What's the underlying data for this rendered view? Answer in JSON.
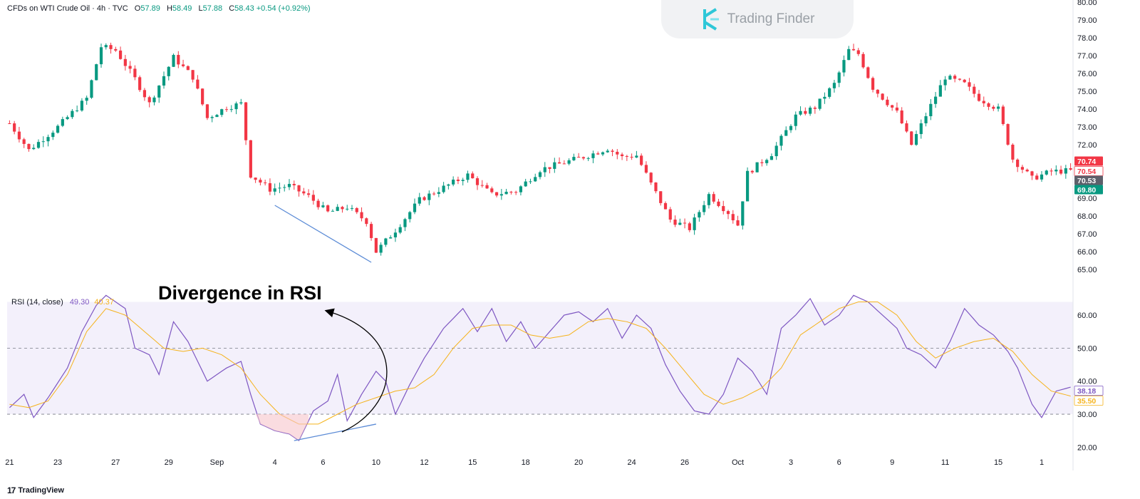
{
  "header": {
    "symbol": "CFDs on WTI Crude Oil · 4h · TVC",
    "o_label": "O",
    "o_value": "57.89",
    "h_label": "H",
    "h_value": "58.49",
    "l_label": "L",
    "l_value": "57.88",
    "c_label": "C",
    "c_value": "58.43",
    "change": "+0.54 (+0.92%)"
  },
  "brand": {
    "name": "Trading Finder"
  },
  "footer": {
    "logo_mark": "17",
    "name": "TradingView"
  },
  "annotation": {
    "text": "Divergence in RSI"
  },
  "colors": {
    "up": "#089981",
    "down": "#f23645",
    "rsi_line": "#7e57c2",
    "rsi_ma": "#f5b31c",
    "rsi_band": "#f3f0fb",
    "divergence": "#5b8bd6"
  },
  "chart_data": [
    {
      "type": "candlestick",
      "x_ticks": [
        "21",
        "23",
        "27",
        "29",
        "Sep",
        "4",
        "6",
        "10",
        "12",
        "15",
        "18",
        "20",
        "24",
        "26",
        "Oct",
        "3",
        "6",
        "9",
        "11",
        "15",
        "1"
      ],
      "y_ticks": [
        "80.00",
        "79.00",
        "78.00",
        "77.00",
        "76.00",
        "75.00",
        "74.00",
        "73.00",
        "72.00",
        "71.00",
        "70.00",
        "69.00",
        "68.00",
        "67.00",
        "66.00",
        "65.00"
      ],
      "ylim": [
        64.0,
        80.0
      ],
      "price_labels": [
        {
          "value": "70.74",
          "color": "#f23645"
        },
        {
          "value": "70.54",
          "color": "#f23645"
        },
        {
          "value": "70.53",
          "color": "#5d606b"
        },
        {
          "value": "69.80",
          "color": "#089981"
        }
      ],
      "trendline": [
        {
          "x": 55,
          "y": 68.6
        },
        {
          "x": 75,
          "y": 65.4
        }
      ],
      "anchors": [
        {
          "x": 0,
          "y": 73.2
        },
        {
          "x": 4,
          "y": 71.7
        },
        {
          "x": 10,
          "y": 73.0
        },
        {
          "x": 16,
          "y": 74.6
        },
        {
          "x": 19,
          "y": 77.5
        },
        {
          "x": 22,
          "y": 77.3
        },
        {
          "x": 26,
          "y": 75.7
        },
        {
          "x": 29,
          "y": 74.3
        },
        {
          "x": 34,
          "y": 76.9
        },
        {
          "x": 38,
          "y": 75.8
        },
        {
          "x": 41,
          "y": 73.5
        },
        {
          "x": 45,
          "y": 74.1
        },
        {
          "x": 48,
          "y": 74.3
        },
        {
          "x": 50,
          "y": 70.3
        },
        {
          "x": 54,
          "y": 69.5
        },
        {
          "x": 58,
          "y": 69.7
        },
        {
          "x": 62,
          "y": 69.1
        },
        {
          "x": 66,
          "y": 68.2
        },
        {
          "x": 70,
          "y": 68.5
        },
        {
          "x": 74,
          "y": 67.7
        },
        {
          "x": 76,
          "y": 66.0
        },
        {
          "x": 80,
          "y": 67.2
        },
        {
          "x": 85,
          "y": 68.9
        },
        {
          "x": 90,
          "y": 69.6
        },
        {
          "x": 95,
          "y": 70.3
        },
        {
          "x": 100,
          "y": 69.2
        },
        {
          "x": 105,
          "y": 69.4
        },
        {
          "x": 110,
          "y": 70.6
        },
        {
          "x": 115,
          "y": 71.0
        },
        {
          "x": 120,
          "y": 71.4
        },
        {
          "x": 124,
          "y": 71.8
        },
        {
          "x": 127,
          "y": 71.3
        },
        {
          "x": 130,
          "y": 71.4
        },
        {
          "x": 133,
          "y": 69.8
        },
        {
          "x": 137,
          "y": 67.8
        },
        {
          "x": 141,
          "y": 67.3
        },
        {
          "x": 145,
          "y": 69.2
        },
        {
          "x": 149,
          "y": 68.2
        },
        {
          "x": 151,
          "y": 67.5
        },
        {
          "x": 153,
          "y": 70.4
        },
        {
          "x": 158,
          "y": 71.5
        },
        {
          "x": 163,
          "y": 73.6
        },
        {
          "x": 167,
          "y": 74.1
        },
        {
          "x": 171,
          "y": 75.4
        },
        {
          "x": 174,
          "y": 77.3
        },
        {
          "x": 176,
          "y": 77.1
        },
        {
          "x": 179,
          "y": 75.2
        },
        {
          "x": 184,
          "y": 73.8
        },
        {
          "x": 187,
          "y": 72.0
        },
        {
          "x": 191,
          "y": 74.2
        },
        {
          "x": 194,
          "y": 75.8
        },
        {
          "x": 198,
          "y": 75.4
        },
        {
          "x": 201,
          "y": 74.6
        },
        {
          "x": 205,
          "y": 74.0
        },
        {
          "x": 208,
          "y": 71.2
        },
        {
          "x": 212,
          "y": 70.1
        },
        {
          "x": 216,
          "y": 70.5
        },
        {
          "x": 220,
          "y": 70.54
        }
      ]
    },
    {
      "type": "line",
      "title": "RSI (14, close)",
      "values_shown": [
        "49.30",
        "40.37"
      ],
      "series": [
        {
          "name": "RSI (14, close)",
          "points": [
            {
              "x": 0,
              "y": 32
            },
            {
              "x": 3,
              "y": 36
            },
            {
              "x": 5,
              "y": 29
            },
            {
              "x": 8,
              "y": 35
            },
            {
              "x": 12,
              "y": 44
            },
            {
              "x": 15,
              "y": 55
            },
            {
              "x": 18,
              "y": 63
            },
            {
              "x": 20,
              "y": 66
            },
            {
              "x": 24,
              "y": 62
            },
            {
              "x": 26,
              "y": 50
            },
            {
              "x": 29,
              "y": 48
            },
            {
              "x": 31,
              "y": 42
            },
            {
              "x": 34,
              "y": 58
            },
            {
              "x": 37,
              "y": 52
            },
            {
              "x": 41,
              "y": 40
            },
            {
              "x": 45,
              "y": 44
            },
            {
              "x": 48,
              "y": 46
            },
            {
              "x": 50,
              "y": 36
            },
            {
              "x": 52,
              "y": 27
            },
            {
              "x": 55,
              "y": 25
            },
            {
              "x": 58,
              "y": 24
            },
            {
              "x": 60,
              "y": 22
            },
            {
              "x": 63,
              "y": 31
            },
            {
              "x": 66,
              "y": 34
            },
            {
              "x": 68,
              "y": 42
            },
            {
              "x": 70,
              "y": 28
            },
            {
              "x": 73,
              "y": 36
            },
            {
              "x": 76,
              "y": 43
            },
            {
              "x": 78,
              "y": 40
            },
            {
              "x": 80,
              "y": 30
            },
            {
              "x": 83,
              "y": 39
            },
            {
              "x": 86,
              "y": 47
            },
            {
              "x": 90,
              "y": 56
            },
            {
              "x": 94,
              "y": 62
            },
            {
              "x": 97,
              "y": 55
            },
            {
              "x": 100,
              "y": 62
            },
            {
              "x": 103,
              "y": 52
            },
            {
              "x": 106,
              "y": 58
            },
            {
              "x": 109,
              "y": 50
            },
            {
              "x": 112,
              "y": 55
            },
            {
              "x": 115,
              "y": 60
            },
            {
              "x": 118,
              "y": 61
            },
            {
              "x": 121,
              "y": 58
            },
            {
              "x": 124,
              "y": 62
            },
            {
              "x": 127,
              "y": 53
            },
            {
              "x": 130,
              "y": 60
            },
            {
              "x": 133,
              "y": 56
            },
            {
              "x": 136,
              "y": 45
            },
            {
              "x": 139,
              "y": 37
            },
            {
              "x": 142,
              "y": 31
            },
            {
              "x": 145,
              "y": 30
            },
            {
              "x": 148,
              "y": 36
            },
            {
              "x": 151,
              "y": 47
            },
            {
              "x": 154,
              "y": 43
            },
            {
              "x": 157,
              "y": 36
            },
            {
              "x": 160,
              "y": 56
            },
            {
              "x": 163,
              "y": 60
            },
            {
              "x": 166,
              "y": 65
            },
            {
              "x": 169,
              "y": 57
            },
            {
              "x": 172,
              "y": 60
            },
            {
              "x": 175,
              "y": 66
            },
            {
              "x": 178,
              "y": 64
            },
            {
              "x": 181,
              "y": 60
            },
            {
              "x": 184,
              "y": 56
            },
            {
              "x": 186,
              "y": 50
            },
            {
              "x": 189,
              "y": 48
            },
            {
              "x": 192,
              "y": 44
            },
            {
              "x": 195,
              "y": 52
            },
            {
              "x": 198,
              "y": 62
            },
            {
              "x": 201,
              "y": 57
            },
            {
              "x": 204,
              "y": 54
            },
            {
              "x": 207,
              "y": 49
            },
            {
              "x": 209,
              "y": 44
            },
            {
              "x": 212,
              "y": 33
            },
            {
              "x": 214,
              "y": 29
            },
            {
              "x": 217,
              "y": 37
            },
            {
              "x": 220,
              "y": 38.18
            }
          ]
        },
        {
          "name": "RSI-based MA",
          "points": [
            {
              "x": 0,
              "y": 33
            },
            {
              "x": 4,
              "y": 32
            },
            {
              "x": 8,
              "y": 34
            },
            {
              "x": 12,
              "y": 42
            },
            {
              "x": 16,
              "y": 55
            },
            {
              "x": 20,
              "y": 62
            },
            {
              "x": 24,
              "y": 60
            },
            {
              "x": 28,
              "y": 55
            },
            {
              "x": 32,
              "y": 50
            },
            {
              "x": 36,
              "y": 49
            },
            {
              "x": 40,
              "y": 50
            },
            {
              "x": 44,
              "y": 48
            },
            {
              "x": 48,
              "y": 44
            },
            {
              "x": 52,
              "y": 36
            },
            {
              "x": 56,
              "y": 30
            },
            {
              "x": 60,
              "y": 27
            },
            {
              "x": 64,
              "y": 27
            },
            {
              "x": 68,
              "y": 30
            },
            {
              "x": 72,
              "y": 33
            },
            {
              "x": 76,
              "y": 35
            },
            {
              "x": 80,
              "y": 37
            },
            {
              "x": 84,
              "y": 38
            },
            {
              "x": 88,
              "y": 42
            },
            {
              "x": 92,
              "y": 50
            },
            {
              "x": 96,
              "y": 56
            },
            {
              "x": 100,
              "y": 57
            },
            {
              "x": 104,
              "y": 57
            },
            {
              "x": 108,
              "y": 54
            },
            {
              "x": 112,
              "y": 53
            },
            {
              "x": 116,
              "y": 54
            },
            {
              "x": 120,
              "y": 58
            },
            {
              "x": 124,
              "y": 59
            },
            {
              "x": 128,
              "y": 58
            },
            {
              "x": 132,
              "y": 56
            },
            {
              "x": 136,
              "y": 50
            },
            {
              "x": 140,
              "y": 43
            },
            {
              "x": 144,
              "y": 36
            },
            {
              "x": 148,
              "y": 33
            },
            {
              "x": 152,
              "y": 35
            },
            {
              "x": 156,
              "y": 38
            },
            {
              "x": 160,
              "y": 44
            },
            {
              "x": 164,
              "y": 54
            },
            {
              "x": 168,
              "y": 58
            },
            {
              "x": 172,
              "y": 62
            },
            {
              "x": 176,
              "y": 64
            },
            {
              "x": 180,
              "y": 64
            },
            {
              "x": 184,
              "y": 60
            },
            {
              "x": 188,
              "y": 52
            },
            {
              "x": 192,
              "y": 47
            },
            {
              "x": 196,
              "y": 50
            },
            {
              "x": 200,
              "y": 52
            },
            {
              "x": 204,
              "y": 53
            },
            {
              "x": 208,
              "y": 49
            },
            {
              "x": 212,
              "y": 42
            },
            {
              "x": 216,
              "y": 37
            },
            {
              "x": 220,
              "y": 35.5
            }
          ]
        }
      ],
      "y_ticks": [
        "60.00",
        "50.00",
        "40.00",
        "30.00",
        "20.00"
      ],
      "ylim": [
        19,
        68
      ],
      "levels": [
        50,
        30
      ],
      "band": [
        30,
        64
      ],
      "trendline": [
        {
          "x": 59,
          "y": 22
        },
        {
          "x": 76,
          "y": 27
        }
      ],
      "right_labels": [
        {
          "value": "38.18",
          "color": "#7e57c2"
        },
        {
          "value": "35.50",
          "color": "#f5b31c"
        }
      ]
    }
  ]
}
